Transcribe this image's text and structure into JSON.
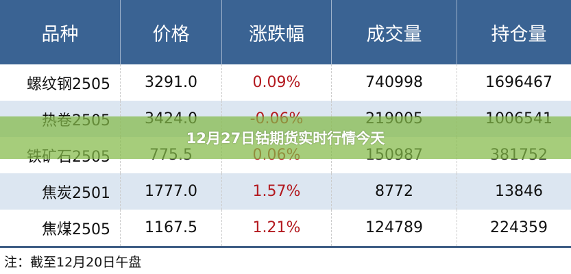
{
  "table": {
    "headers": [
      "品种",
      "价格",
      "涨跌幅",
      "成交量",
      "持仓量"
    ],
    "rows": [
      [
        "螺纹钢2505",
        "3291.0",
        "0.09%",
        "740998",
        "1696467"
      ],
      [
        "热卷2505",
        "3424.0",
        "-0.06%",
        "219005",
        "1006541"
      ],
      [
        "铁矿石2505",
        "775.5",
        "0.06%",
        "150987",
        "381752"
      ],
      [
        "焦炭2501",
        "1777.0",
        "1.57%",
        "8772",
        "13846"
      ],
      [
        "焦煤2505",
        "1167.5",
        "1.21%",
        "124789",
        "224359"
      ]
    ]
  },
  "note": "注：截至12月20日午盘",
  "banner_title": "12月27日钴期货实时行情今天",
  "colors": {
    "header_bg": "#3a6393",
    "alt_row": "#dce6f1",
    "change_text": "#b3191f",
    "banner": "#84ba48"
  }
}
